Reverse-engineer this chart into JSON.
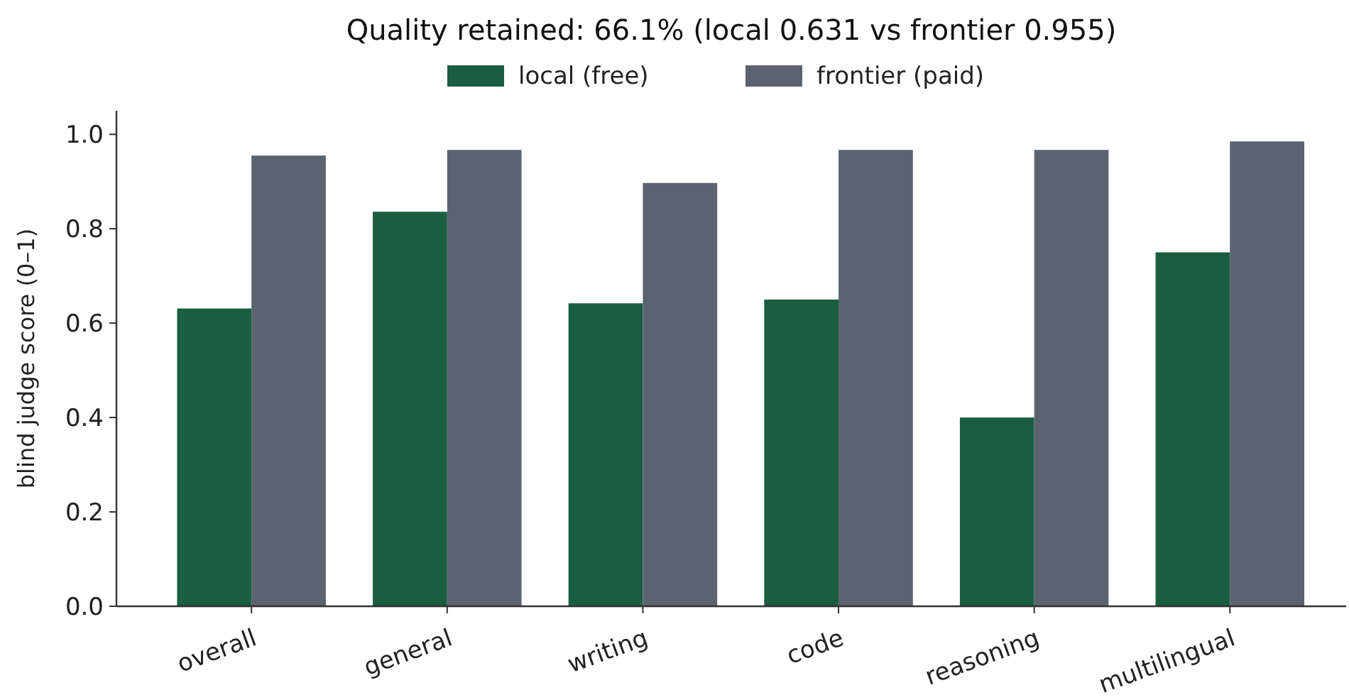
{
  "chart_data": {
    "type": "bar",
    "title": "Quality retained: 66.1% (local 0.631 vs frontier 0.955)",
    "ylabel": "blind judge score (0–1)",
    "categories": [
      "overall",
      "general",
      "writing",
      "code",
      "reasoning",
      "multilingual"
    ],
    "series": [
      {
        "name": "local (free)",
        "color": "#1a5e42",
        "values": [
          0.631,
          0.836,
          0.642,
          0.65,
          0.4,
          0.75
        ]
      },
      {
        "name": "frontier (paid)",
        "color": "#5c6370",
        "values": [
          0.955,
          0.967,
          0.897,
          0.967,
          0.967,
          0.985
        ]
      }
    ],
    "ylim": [
      0,
      1.05
    ],
    "yticks": [
      {
        "value": 0,
        "label": "0.0"
      },
      {
        "value": 0.2,
        "label": "0.2"
      },
      {
        "value": 0.4,
        "label": "0.4"
      },
      {
        "value": 0.6,
        "label": "0.6"
      },
      {
        "value": 0.8,
        "label": "0.8"
      },
      {
        "value": 1,
        "label": "1.0"
      }
    ],
    "grid": false,
    "legend": "top"
  }
}
